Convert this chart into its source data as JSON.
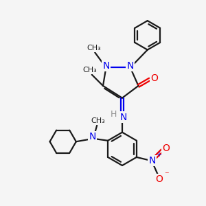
{
  "bg_color": "#f5f5f5",
  "bond_color": "#1a1a1a",
  "n_color": "#0000ee",
  "o_color": "#ee0000",
  "h_color": "#909090",
  "line_width": 1.6,
  "figsize": [
    3.0,
    3.0
  ],
  "dpi": 100,
  "xlim": [
    0,
    10
  ],
  "ylim": [
    0,
    10
  ]
}
